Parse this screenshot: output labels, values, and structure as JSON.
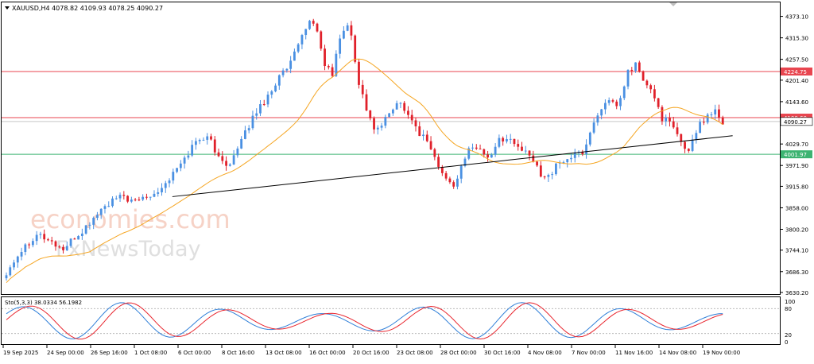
{
  "header": {
    "symbol_line": "XAUUSD,H4  4078.82 4109.93 4078.25 4090.27"
  },
  "watermark": {
    "line1": "economies.com",
    "line2": "FxNewsToday"
  },
  "oscillator": {
    "label": "Sto(5,3,3) 38.0334 56.1982",
    "levels": [
      "100",
      "80",
      "20",
      "0"
    ]
  },
  "chart_data": {
    "type": "candlestick",
    "symbol": "XAUUSD",
    "timeframe": "H4",
    "ohlc_last": {
      "open": 4078.82,
      "high": 4109.93,
      "low": 4078.25,
      "close": 4090.27
    },
    "ylim": [
      3630.2,
      4400
    ],
    "y_ticks": [
      "4373.10",
      "4315.30",
      "4257.50",
      "4201.40",
      "4143.60",
      "4090.27",
      "4029.70",
      "3971.90",
      "3915.80",
      "3858.00",
      "3800.20",
      "3744.10",
      "3686.30",
      "3630.20"
    ],
    "x_ticks": [
      "19 Sep 2025",
      "24 Sep 00:00",
      "26 Sep 16:00",
      "1 Oct 08:00",
      "6 Oct 00:00",
      "8 Oct 16:00",
      "13 Oct 08:00",
      "16 Oct 00:00",
      "20 Oct 16:00",
      "23 Oct 08:00",
      "28 Oct 00:00",
      "30 Oct 16:00",
      "4 Nov 08:00",
      "7 Nov 00:00",
      "11 Nov 16:00",
      "14 Nov 08:00",
      "19 Nov 00:00"
    ],
    "horizontal_levels": [
      {
        "value": 4224.75,
        "label": "4224.75",
        "color": "#e8454f"
      },
      {
        "value": 4100.6,
        "label": "4100.60",
        "color": "#e8454f"
      },
      {
        "value": 4001.97,
        "label": "4001.97",
        "color": "#3cb371"
      }
    ],
    "current_price": {
      "value": 4090.27,
      "label": "4090.27"
    },
    "price_path": [
      3670,
      3705,
      3740,
      3765,
      3790,
      3775,
      3760,
      3745,
      3770,
      3790,
      3815,
      3845,
      3865,
      3880,
      3890,
      3870,
      3885,
      3895,
      3905,
      3930,
      3960,
      3990,
      4030,
      4050,
      4040,
      3985,
      3975,
      4010,
      4060,
      4110,
      4140,
      4175,
      4215,
      4235,
      4290,
      4350,
      4360,
      4250,
      4215,
      4330,
      4350,
      4200,
      4120,
      4060,
      4090,
      4130,
      4140,
      4100,
      4060,
      4040,
      3980,
      3935,
      3920,
      3970,
      4030,
      4015,
      3990,
      4035,
      4050,
      4030,
      4010,
      3990,
      3950,
      3945,
      3975,
      3990,
      4000,
      4010,
      4080,
      4130,
      4140,
      4130,
      4220,
      4245,
      4190,
      4165,
      4100,
      4085,
      4040,
      4010,
      4070,
      4100,
      4125,
      4090
    ],
    "moving_average": {
      "name": "",
      "color": "#f5a623"
    },
    "trendline": {
      "from": {
        "t": 0.225,
        "price": 3888
      },
      "to": {
        "t": 0.97,
        "price": 4052
      },
      "color": "#000000"
    },
    "stochastic": {
      "params": "5,3,3",
      "main": 38.0334,
      "signal": 56.1982,
      "ylim": [
        0,
        100
      ],
      "levels": [
        80,
        20
      ],
      "main_color": "#e8252e",
      "signal_color": "#2f7fd8"
    }
  },
  "colors": {
    "bull": "#4a90e2",
    "bear": "#e0202a",
    "axis": "#000000",
    "grid": "#c8c8c8"
  }
}
